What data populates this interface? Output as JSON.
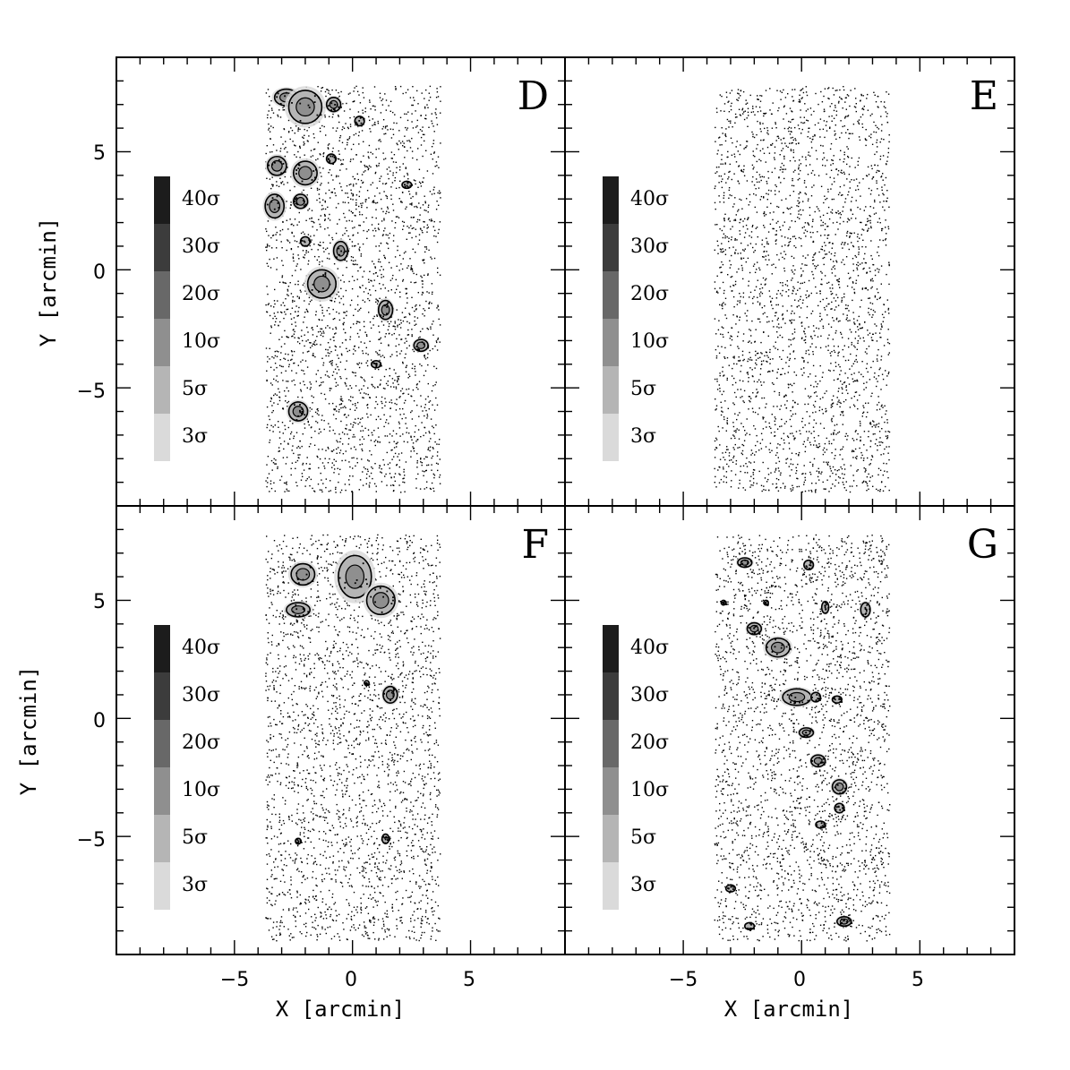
{
  "chart_data": {
    "type": "scatter",
    "xlabel": "X [arcmin]",
    "ylabel": "Y [arcmin]",
    "xlim": [
      -10,
      9
    ],
    "ylim": [
      -10,
      9
    ],
    "xticks": [
      -5,
      0,
      5
    ],
    "yticks": [
      -5,
      0,
      5
    ],
    "tick_labels": {
      "x": [
        "−5",
        "0",
        "5"
      ],
      "y": [
        "−5",
        "0",
        "5"
      ]
    },
    "field_bounds": {
      "x": [
        -3.7,
        3.7
      ],
      "y": [
        -9.4,
        7.8
      ]
    },
    "legend": {
      "levels": [
        {
          "label": "40σ",
          "color": "#1c1c1c"
        },
        {
          "label": "30σ",
          "color": "#3c3c3c"
        },
        {
          "label": "20σ",
          "color": "#686868"
        },
        {
          "label": "10σ",
          "color": "#8f8f8f"
        },
        {
          "label": "5σ",
          "color": "#b5b5b5"
        },
        {
          "label": "3σ",
          "color": "#dadada"
        }
      ]
    },
    "panels": [
      {
        "letter": "D",
        "clumps": [
          {
            "x": -2.8,
            "y": 7.3,
            "rx": 0.5,
            "ry": 0.35
          },
          {
            "x": -2.0,
            "y": 6.9,
            "rx": 0.7,
            "ry": 0.7
          },
          {
            "x": -0.8,
            "y": 7.0,
            "rx": 0.3,
            "ry": 0.3
          },
          {
            "x": 0.3,
            "y": 6.3,
            "rx": 0.2,
            "ry": 0.2
          },
          {
            "x": -3.2,
            "y": 4.4,
            "rx": 0.4,
            "ry": 0.4
          },
          {
            "x": -2.0,
            "y": 4.1,
            "rx": 0.5,
            "ry": 0.5
          },
          {
            "x": -3.3,
            "y": 2.7,
            "rx": 0.4,
            "ry": 0.5
          },
          {
            "x": -2.2,
            "y": 2.9,
            "rx": 0.3,
            "ry": 0.3
          },
          {
            "x": -2.0,
            "y": 1.2,
            "rx": 0.2,
            "ry": 0.2
          },
          {
            "x": -0.5,
            "y": 0.8,
            "rx": 0.3,
            "ry": 0.4
          },
          {
            "x": -1.3,
            "y": -0.6,
            "rx": 0.6,
            "ry": 0.6
          },
          {
            "x": 1.4,
            "y": -1.7,
            "rx": 0.3,
            "ry": 0.4
          },
          {
            "x": 2.9,
            "y": -3.2,
            "rx": 0.3,
            "ry": 0.25
          },
          {
            "x": 1.0,
            "y": -4.0,
            "rx": 0.2,
            "ry": 0.15
          },
          {
            "x": -2.3,
            "y": -6.0,
            "rx": 0.4,
            "ry": 0.4
          },
          {
            "x": -0.9,
            "y": 4.7,
            "rx": 0.2,
            "ry": 0.2
          },
          {
            "x": 2.3,
            "y": 3.6,
            "rx": 0.2,
            "ry": 0.15
          }
        ]
      },
      {
        "letter": "E",
        "clumps": []
      },
      {
        "letter": "F",
        "clumps": [
          {
            "x": -2.1,
            "y": 6.1,
            "rx": 0.5,
            "ry": 0.45
          },
          {
            "x": 0.1,
            "y": 6.0,
            "rx": 0.7,
            "ry": 0.9
          },
          {
            "x": 1.2,
            "y": 5.0,
            "rx": 0.6,
            "ry": 0.6
          },
          {
            "x": -2.3,
            "y": 4.6,
            "rx": 0.5,
            "ry": 0.3
          },
          {
            "x": 1.6,
            "y": 1.0,
            "rx": 0.3,
            "ry": 0.35
          },
          {
            "x": 1.4,
            "y": -5.1,
            "rx": 0.15,
            "ry": 0.2
          },
          {
            "x": -2.3,
            "y": -5.2,
            "rx": 0.12,
            "ry": 0.12
          },
          {
            "x": 0.6,
            "y": 1.5,
            "rx": 0.1,
            "ry": 0.1
          }
        ]
      },
      {
        "letter": "G",
        "clumps": [
          {
            "x": -2.4,
            "y": 6.6,
            "rx": 0.3,
            "ry": 0.2
          },
          {
            "x": 0.3,
            "y": 6.5,
            "rx": 0.2,
            "ry": 0.2
          },
          {
            "x": -2.0,
            "y": 3.8,
            "rx": 0.3,
            "ry": 0.25
          },
          {
            "x": -1.0,
            "y": 3.0,
            "rx": 0.5,
            "ry": 0.4
          },
          {
            "x": -0.2,
            "y": 0.9,
            "rx": 0.6,
            "ry": 0.35
          },
          {
            "x": 0.6,
            "y": 0.9,
            "rx": 0.2,
            "ry": 0.2
          },
          {
            "x": 1.5,
            "y": 0.8,
            "rx": 0.2,
            "ry": 0.15
          },
          {
            "x": 1.0,
            "y": 4.7,
            "rx": 0.15,
            "ry": 0.25
          },
          {
            "x": 2.7,
            "y": 4.6,
            "rx": 0.2,
            "ry": 0.3
          },
          {
            "x": 0.2,
            "y": -0.6,
            "rx": 0.3,
            "ry": 0.2
          },
          {
            "x": 0.7,
            "y": -1.8,
            "rx": 0.3,
            "ry": 0.25
          },
          {
            "x": 1.6,
            "y": -2.9,
            "rx": 0.3,
            "ry": 0.3
          },
          {
            "x": 1.6,
            "y": -3.8,
            "rx": 0.2,
            "ry": 0.2
          },
          {
            "x": 0.8,
            "y": -4.5,
            "rx": 0.2,
            "ry": 0.15
          },
          {
            "x": -3.0,
            "y": -7.2,
            "rx": 0.2,
            "ry": 0.15
          },
          {
            "x": -2.2,
            "y": -8.8,
            "rx": 0.2,
            "ry": 0.15
          },
          {
            "x": 1.8,
            "y": -8.6,
            "rx": 0.3,
            "ry": 0.2
          },
          {
            "x": -3.3,
            "y": 4.9,
            "rx": 0.1,
            "ry": 0.1
          },
          {
            "x": -1.5,
            "y": 4.9,
            "rx": 0.1,
            "ry": 0.1
          }
        ]
      }
    ]
  }
}
